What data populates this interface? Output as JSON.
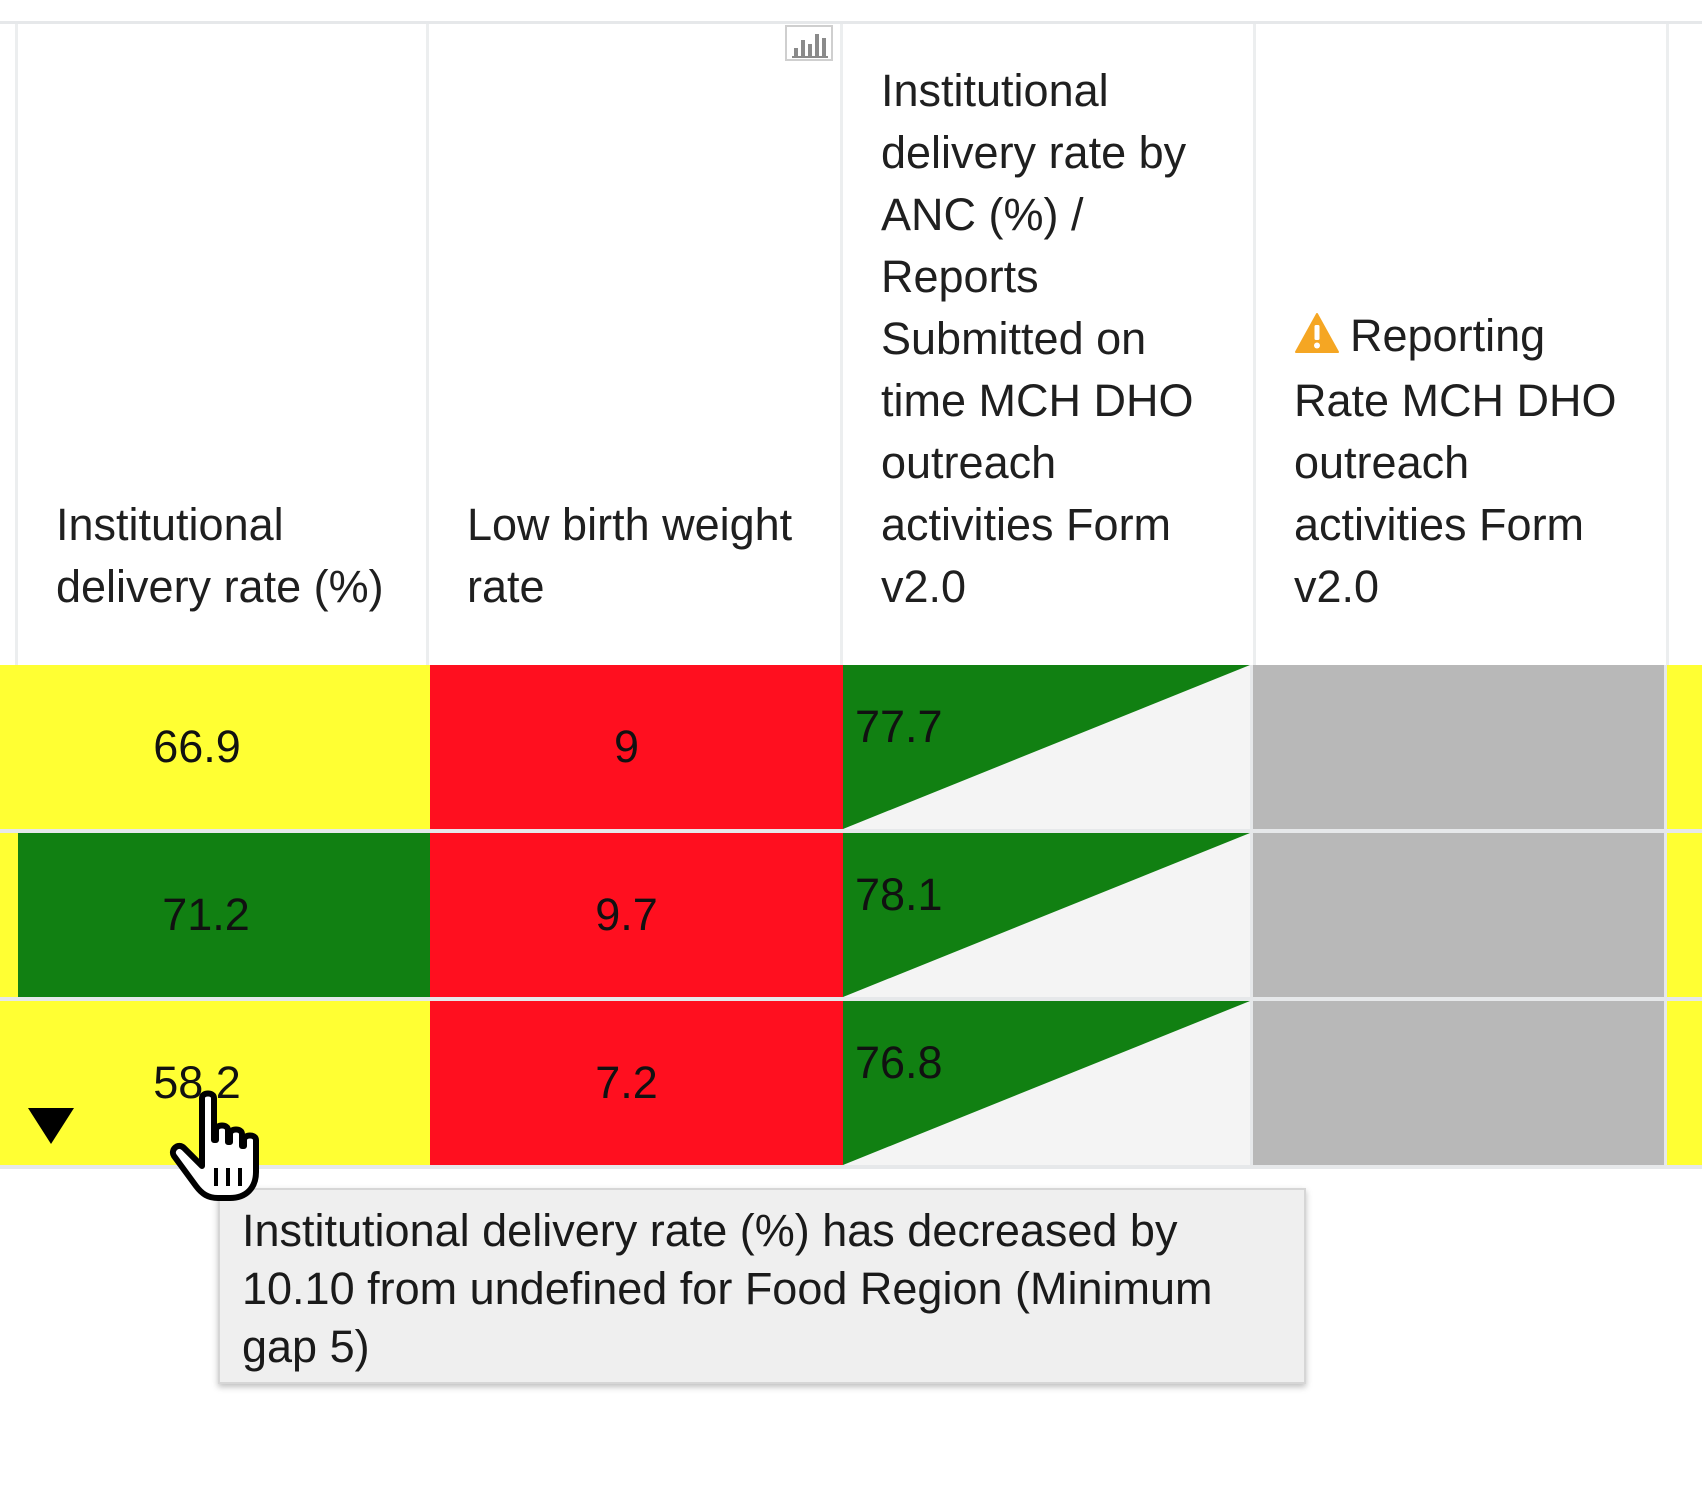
{
  "columns": [
    {
      "label": "Institutional delivery rate (%)"
    },
    {
      "label": "Low birth weight rate"
    },
    {
      "label": "Institutional delivery rate by ANC (%) / Reports Submitted on time MCH DHO outreach activities Form v2.0"
    },
    {
      "label": "Reporting Rate MCH DHO outreach activities Form v2.0",
      "icon": "warning-icon"
    }
  ],
  "rows": [
    {
      "institutional_delivery_rate": "66.9",
      "low_birth_weight_rate": "9",
      "delivery_by_anc_vs_reports": "77.7",
      "reporting_rate": ""
    },
    {
      "institutional_delivery_rate": "71.2",
      "low_birth_weight_rate": "9.7",
      "delivery_by_anc_vs_reports": "78.1",
      "reporting_rate": ""
    },
    {
      "institutional_delivery_rate": "58.2",
      "low_birth_weight_rate": "7.2",
      "delivery_by_anc_vs_reports": "76.8",
      "reporting_rate": ""
    }
  ],
  "tooltip": {
    "text": "Institutional delivery rate (%) has decreased by 10.10 from undefined for Food Region (Minimum gap 5)"
  },
  "colors": {
    "yellow": "#ffff33",
    "green": "#118012",
    "red": "#ff0f1f",
    "grey": "#b8b8b8",
    "warning": "#f5a623"
  },
  "icons": {
    "chart": "bar-chart-icon",
    "trend": "down-arrow-icon",
    "cursor": "hand-pointer-icon"
  }
}
